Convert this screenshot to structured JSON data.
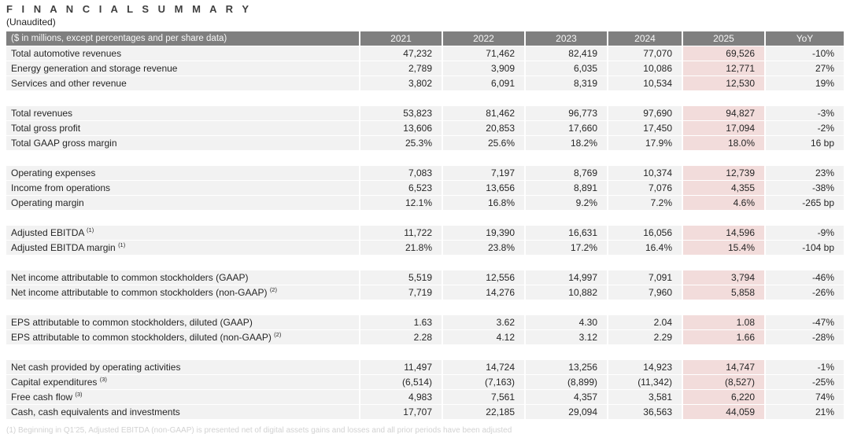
{
  "page": {
    "title": "F I N A N C I A L   S U M M A R Y",
    "subtitle": "(Unaudited)",
    "footnote": "(1) Beginning in Q1'25, Adjusted EBITDA (non-GAAP) is presented net of digital assets gains and losses and all prior periods have been adjusted"
  },
  "colors": {
    "header_bg": "#7f7f7f",
    "header_text": "#f7f7f7",
    "row_bg": "#f2f2f2",
    "highlight_2025_bg": "#f2dcdb",
    "body_text": "#262626",
    "footnote_text": "#d2d2d2"
  },
  "table": {
    "label_header": "($ in millions, except percentages and per share data)",
    "columns": [
      "2021",
      "2022",
      "2023",
      "2024",
      "2025",
      "YoY"
    ],
    "highlight_column": "2025",
    "sections": [
      {
        "rows": [
          {
            "label": "Total automotive revenues",
            "values": [
              "47,232",
              "71,462",
              "82,419",
              "77,070",
              "69,526",
              "-10%"
            ]
          },
          {
            "label": "Energy generation and storage revenue",
            "values": [
              "2,789",
              "3,909",
              "6,035",
              "10,086",
              "12,771",
              "27%"
            ]
          },
          {
            "label": "Services and other revenue",
            "values": [
              "3,802",
              "6,091",
              "8,319",
              "10,534",
              "12,530",
              "19%"
            ]
          }
        ]
      },
      {
        "rows": [
          {
            "label": "Total revenues",
            "values": [
              "53,823",
              "81,462",
              "96,773",
              "97,690",
              "94,827",
              "-3%"
            ]
          },
          {
            "label": "Total gross profit",
            "values": [
              "13,606",
              "20,853",
              "17,660",
              "17,450",
              "17,094",
              "-2%"
            ]
          },
          {
            "label": "Total GAAP gross margin",
            "values": [
              "25.3%",
              "25.6%",
              "18.2%",
              "17.9%",
              "18.0%",
              "16 bp"
            ]
          }
        ]
      },
      {
        "rows": [
          {
            "label": "Operating expenses",
            "values": [
              "7,083",
              "7,197",
              "8,769",
              "10,374",
              "12,739",
              "23%"
            ]
          },
          {
            "label": "Income from operations",
            "values": [
              "6,523",
              "13,656",
              "8,891",
              "7,076",
              "4,355",
              "-38%"
            ]
          },
          {
            "label": "Operating margin",
            "values": [
              "12.1%",
              "16.8%",
              "9.2%",
              "7.2%",
              "4.6%",
              "-265 bp"
            ]
          }
        ]
      },
      {
        "rows": [
          {
            "label": "Adjusted EBITDA",
            "sup": "(1)",
            "values": [
              "11,722",
              "19,390",
              "16,631",
              "16,056",
              "14,596",
              "-9%"
            ]
          },
          {
            "label": "Adjusted EBITDA margin",
            "sup": "(1)",
            "values": [
              "21.8%",
              "23.8%",
              "17.2%",
              "16.4%",
              "15.4%",
              "-104 bp"
            ]
          }
        ]
      },
      {
        "rows": [
          {
            "label": "Net income attributable to common stockholders (GAAP)",
            "values": [
              "5,519",
              "12,556",
              "14,997",
              "7,091",
              "3,794",
              "-46%"
            ]
          },
          {
            "label": "Net income attributable to common stockholders (non-GAAP)",
            "sup": "(2)",
            "values": [
              "7,719",
              "14,276",
              "10,882",
              "7,960",
              "5,858",
              "-26%"
            ]
          }
        ]
      },
      {
        "rows": [
          {
            "label": "EPS attributable to common stockholders, diluted (GAAP)",
            "values": [
              "1.63",
              "3.62",
              "4.30",
              "2.04",
              "1.08",
              "-47%"
            ]
          },
          {
            "label": "EPS attributable to common stockholders, diluted (non-GAAP)",
            "sup": "(2)",
            "values": [
              "2.28",
              "4.12",
              "3.12",
              "2.29",
              "1.66",
              "-28%"
            ]
          }
        ]
      },
      {
        "rows": [
          {
            "label": "Net cash provided by operating activities",
            "values": [
              "11,497",
              "14,724",
              "13,256",
              "14,923",
              "14,747",
              "-1%"
            ]
          },
          {
            "label": "Capital expenditures",
            "sup": "(3)",
            "values": [
              "(6,514)",
              "(7,163)",
              "(8,899)",
              "(11,342)",
              "(8,527)",
              "-25%"
            ]
          },
          {
            "label": "Free cash flow",
            "sup": "(3)",
            "values": [
              "4,983",
              "7,561",
              "4,357",
              "3,581",
              "6,220",
              "74%"
            ]
          },
          {
            "label": "Cash, cash equivalents and investments",
            "values": [
              "17,707",
              "22,185",
              "29,094",
              "36,563",
              "44,059",
              "21%"
            ]
          }
        ]
      }
    ]
  }
}
